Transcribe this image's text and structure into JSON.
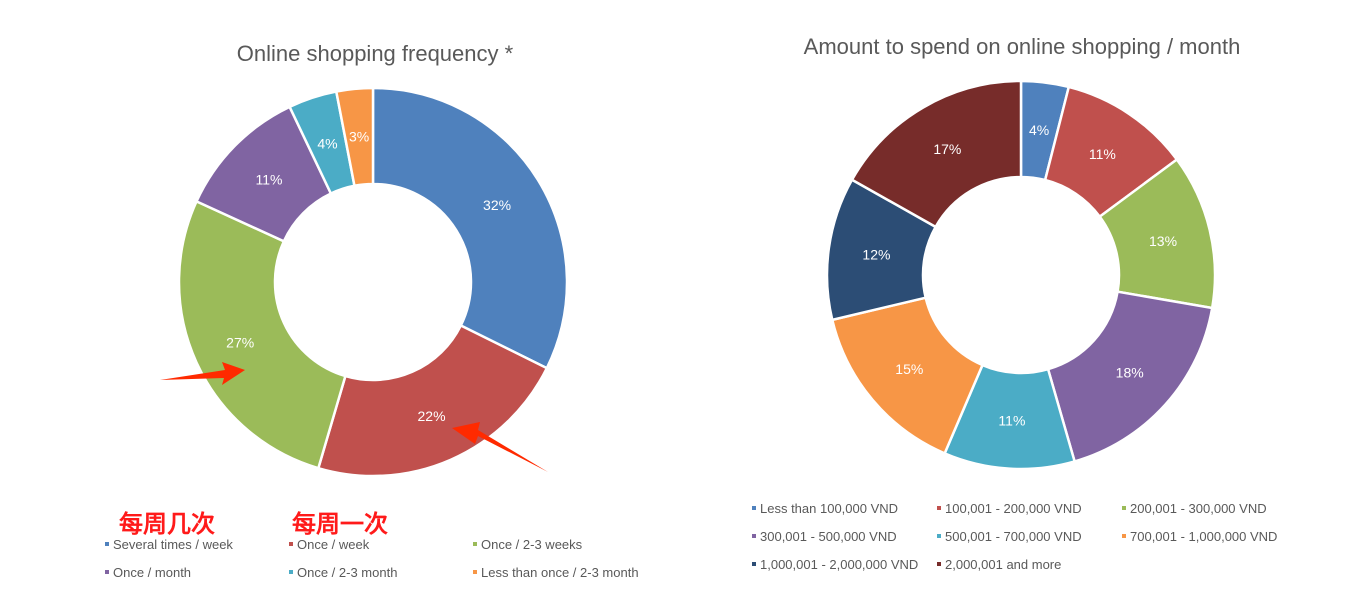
{
  "chart_data": [
    {
      "type": "pie",
      "variant": "donut",
      "title": "Online shopping frequency *",
      "categories": [
        "Several times / week",
        "Once / week",
        "Once / 2-3 weeks",
        "Once / month",
        "Once / 2-3 month",
        "Less than once / 2-3 month"
      ],
      "values": [
        32,
        22,
        27,
        11,
        4,
        3
      ],
      "labels": [
        "32%",
        "22%",
        "27%",
        "11%",
        "4%",
        "3%"
      ],
      "colors": [
        "#4F81BD",
        "#C0504D",
        "#9BBB59",
        "#8064A2",
        "#4BACC6",
        "#F79646"
      ],
      "legend_position": "bottom",
      "legend_columns": 3,
      "annotations": [
        {
          "text": "每周几次",
          "color": "#ff1a1a"
        },
        {
          "text": "每周一次",
          "color": "#ff1a1a"
        }
      ]
    },
    {
      "type": "pie",
      "variant": "donut",
      "title": "Amount to spend on online shopping / month",
      "categories": [
        "Less than 100,000 VND",
        "100,001 - 200,000 VND",
        "200,001 - 300,000 VND",
        "300,001 - 500,000 VND",
        "500,001 - 700,000 VND",
        "700,001 - 1,000,000 VND",
        "1,000,001 - 2,000,000 VND",
        "2,000,001 and more"
      ],
      "values": [
        4,
        11,
        13,
        18,
        11,
        15,
        12,
        17
      ],
      "labels": [
        "4%",
        "11%",
        "13%",
        "18%",
        "11%",
        "15%",
        "12%",
        "17%"
      ],
      "colors": [
        "#4F81BD",
        "#C0504D",
        "#9BBB59",
        "#8064A2",
        "#4BACC6",
        "#F79646",
        "#2C4D75",
        "#772C2A"
      ],
      "legend_position": "bottom",
      "legend_columns": 3
    }
  ]
}
